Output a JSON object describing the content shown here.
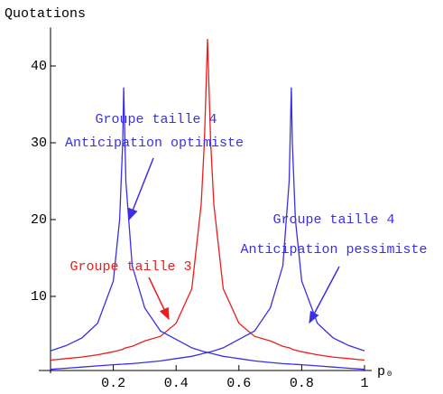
{
  "chart_data": {
    "type": "line",
    "ylabel": "Quotations",
    "xlabel": "p₀",
    "x": [
      0,
      0.05,
      0.1,
      0.15,
      0.2,
      0.22,
      0.23,
      0.233,
      0.24,
      0.26,
      0.3,
      0.35,
      0.4,
      0.45,
      0.48,
      0.49,
      0.5,
      0.51,
      0.52,
      0.55,
      0.6,
      0.65,
      0.7,
      0.74,
      0.76,
      0.767,
      0.77,
      0.78,
      0.8,
      0.85,
      0.9,
      0.95,
      1
    ],
    "series": [
      {
        "color": "#ee1c1c",
        "values": [
          1.7,
          1.9,
          2.1,
          2.4,
          2.8,
          3.0,
          3.1,
          3.2,
          3.3,
          3.5,
          4.2,
          4.8,
          6.5,
          11,
          22,
          30,
          43.5,
          30,
          22,
          11,
          6.5,
          4.8,
          4.2,
          3.5,
          3.3,
          3.2,
          3.1,
          3.0,
          2.8,
          2.4,
          2.1,
          1.9,
          1.7
        ]
      },
      {
        "color": "#3b2fe6",
        "values": [
          2.9,
          3.6,
          4.6,
          6.5,
          12,
          20,
          30,
          37.2,
          25,
          14,
          8.5,
          5.5,
          4.4,
          3.3,
          2.9,
          2.8,
          2.7,
          2.6,
          2.5,
          2.2,
          1.9,
          1.6,
          1.4,
          1.25,
          1.2,
          1.18,
          1.17,
          1.15,
          1.1,
          0.95,
          0.8,
          0.65,
          0.5
        ]
      },
      {
        "color": "#3b2fe6",
        "values": [
          0.5,
          0.65,
          0.8,
          0.95,
          1.1,
          1.15,
          1.17,
          1.18,
          1.2,
          1.25,
          1.4,
          1.6,
          1.9,
          2.2,
          2.5,
          2.6,
          2.7,
          2.8,
          2.9,
          3.3,
          4.4,
          5.5,
          8.5,
          14,
          25,
          37.2,
          30,
          20,
          12,
          6.5,
          4.6,
          3.6,
          2.9
        ]
      }
    ],
    "xlim": [
      0,
      1
    ],
    "ylim": [
      0.35,
      45
    ],
    "xticks": [
      0.2,
      0.4,
      0.6,
      0.8,
      1
    ],
    "yticks": [
      10,
      20,
      30,
      40
    ],
    "annotations": [
      {
        "text": "Groupe taille 4",
        "color": "#3b2fe6"
      },
      {
        "text": "Anticipation optimiste",
        "color": "#3b2fe6"
      },
      {
        "text": "Groupe taille 3",
        "color": "#ee1c1c"
      },
      {
        "text": "Groupe taille 4",
        "color": "#3b2fe6"
      },
      {
        "text": "Anticipation pessimiste",
        "color": "#3b2fe6"
      }
    ]
  }
}
